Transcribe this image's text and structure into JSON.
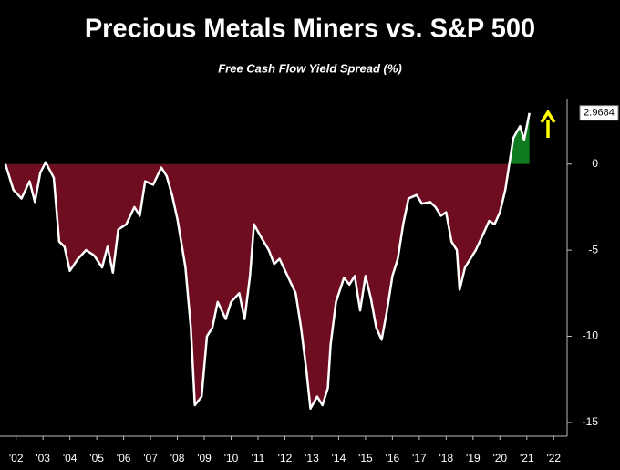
{
  "chart_data": {
    "type": "area",
    "title": "Precious Metals Miners vs. S&P 500",
    "subtitle": "Free Cash Flow Yield Spread (%)",
    "x": [
      2002.1,
      2002.4,
      2002.7,
      2003.0,
      2003.2,
      2003.4,
      2003.6,
      2003.9,
      2004.1,
      2004.3,
      2004.5,
      2004.8,
      2005.1,
      2005.4,
      2005.7,
      2005.9,
      2006.1,
      2006.3,
      2006.6,
      2006.9,
      2007.1,
      2007.3,
      2007.6,
      2007.9,
      2008.1,
      2008.3,
      2008.5,
      2008.8,
      2009.0,
      2009.15,
      2009.4,
      2009.6,
      2009.8,
      2010.0,
      2010.3,
      2010.5,
      2010.8,
      2011.0,
      2011.2,
      2011.35,
      2011.6,
      2011.9,
      2012.1,
      2012.3,
      2012.6,
      2012.9,
      2013.1,
      2013.3,
      2013.45,
      2013.7,
      2013.9,
      2014.1,
      2014.2,
      2014.4,
      2014.7,
      2014.9,
      2015.1,
      2015.3,
      2015.5,
      2015.7,
      2015.9,
      2016.1,
      2016.3,
      2016.5,
      2016.7,
      2016.9,
      2017.1,
      2017.4,
      2017.6,
      2017.9,
      2018.1,
      2018.3,
      2018.5,
      2018.7,
      2018.9,
      2019.0,
      2019.2,
      2019.4,
      2019.6,
      2019.9,
      2020.1,
      2020.3,
      2020.5,
      2020.7,
      2020.85,
      2021.0,
      2021.1,
      2021.25,
      2021.4,
      2021.6
    ],
    "values": [
      0,
      -1.5,
      -2.0,
      -1.0,
      -2.2,
      -0.5,
      0.1,
      -0.8,
      -4.5,
      -4.8,
      -6.2,
      -5.5,
      -5.0,
      -5.3,
      -6.0,
      -4.8,
      -6.3,
      -3.8,
      -3.5,
      -2.5,
      -3.0,
      -1.0,
      -1.2,
      -0.2,
      -0.7,
      -1.8,
      -3.2,
      -6,
      -9.5,
      -14,
      -13.5,
      -10,
      -9.5,
      -8,
      -9,
      -8.0,
      -7.5,
      -9.0,
      -6.5,
      -3.5,
      -4.2,
      -5.0,
      -5.8,
      -5.5,
      -6.5,
      -7.5,
      -9.5,
      -12,
      -14.2,
      -13.5,
      -14,
      -13,
      -10.5,
      -8,
      -6.6,
      -7,
      -6.5,
      -8.5,
      -6.5,
      -7.8,
      -9.5,
      -10.2,
      -8.5,
      -6.5,
      -5.5,
      -3.5,
      -2.0,
      -1.8,
      -2.3,
      -2.2,
      -2.5,
      -3.0,
      -2.8,
      -4.5,
      -5.0,
      -7.3,
      -6.0,
      -5.5,
      -5.0,
      -4.0,
      -3.3,
      -3.5,
      -2.8,
      -1.5,
      0,
      1.5,
      1.8,
      2.2,
      1.4,
      2.9684
    ],
    "line_color": "#ffffff",
    "negative_color": "#6e0c20",
    "positive_color": "#0f7a1f",
    "xlim": [
      2001.9,
      2023
    ],
    "xticks": [
      {
        "value": 2002.5,
        "label": "'02"
      },
      {
        "value": 2003.5,
        "label": "'03"
      },
      {
        "value": 2004.5,
        "label": "'04"
      },
      {
        "value": 2005.5,
        "label": "'05"
      },
      {
        "value": 2006.5,
        "label": "'06"
      },
      {
        "value": 2007.5,
        "label": "'07"
      },
      {
        "value": 2008.5,
        "label": "'08"
      },
      {
        "value": 2009.5,
        "label": "'09"
      },
      {
        "value": 2010.5,
        "label": "'10"
      },
      {
        "value": 2011.5,
        "label": "'11"
      },
      {
        "value": 2012.5,
        "label": "'12"
      },
      {
        "value": 2013.5,
        "label": "'13"
      },
      {
        "value": 2014.5,
        "label": "'14"
      },
      {
        "value": 2015.5,
        "label": "'15"
      },
      {
        "value": 2016.5,
        "label": "'16"
      },
      {
        "value": 2017.5,
        "label": "'17"
      },
      {
        "value": 2018.5,
        "label": "'18"
      },
      {
        "value": 2019.5,
        "label": "'19"
      },
      {
        "value": 2020.5,
        "label": "'20"
      },
      {
        "value": 2021.5,
        "label": "'21"
      },
      {
        "value": 2022.5,
        "label": "'22"
      }
    ],
    "ylim": [
      -15.8,
      3.8
    ],
    "yticks": [
      0,
      -5,
      -10,
      -15
    ],
    "yaxis_side": "right"
  }
}
